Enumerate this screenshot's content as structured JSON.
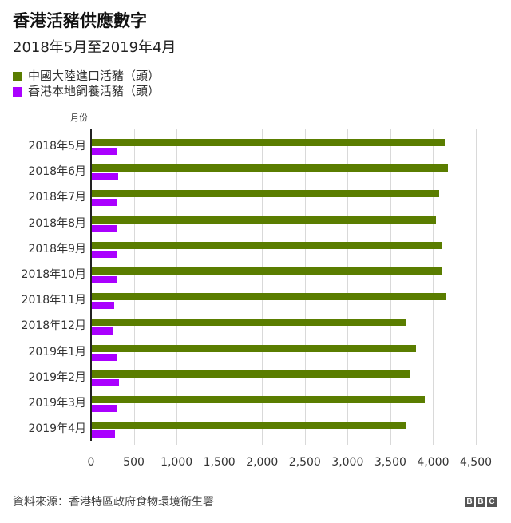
{
  "header": {
    "title": "香港活豬供應數字",
    "subtitle": "2018年5月至2019年4月"
  },
  "legend": [
    {
      "label": "中國大陸進口活豬（頭）",
      "color": "#5a7d00"
    },
    {
      "label": "香港本地飼養活豬（頭）",
      "color": "#aa00ff"
    }
  ],
  "axis": {
    "ylabel": "月份",
    "ticks": [
      "0",
      "500",
      "1,000",
      "1,500",
      "2,000",
      "2,500",
      "3,000",
      "3,500",
      "4,000",
      "4,500"
    ]
  },
  "chart_data": {
    "type": "bar",
    "orientation": "horizontal",
    "title": "香港活豬供應數字",
    "subtitle": "2018年5月至2019年4月",
    "xlabel": "",
    "ylabel": "月份",
    "xlim": [
      0,
      4500
    ],
    "grid": true,
    "legend_position": "top-left",
    "categories": [
      "2018年5月",
      "2018年6月",
      "2018年7月",
      "2018年8月",
      "2018年9月",
      "2018年10月",
      "2018年11月",
      "2018年12月",
      "2019年1月",
      "2019年2月",
      "2019年3月",
      "2019年4月"
    ],
    "series": [
      {
        "name": "中國大陸進口活豬（頭）",
        "color": "#5a7d00",
        "values": [
          4130,
          4165,
          4060,
          4025,
          4095,
          4090,
          4135,
          3675,
          3790,
          3715,
          3895,
          3670
        ]
      },
      {
        "name": "香港本地飼養活豬（頭）",
        "color": "#aa00ff",
        "values": [
          295,
          310,
          300,
          295,
          295,
          285,
          265,
          245,
          285,
          320,
          295,
          275
        ]
      }
    ]
  },
  "footer": {
    "source": "資料來源：香港特區政府食物環境衛生署",
    "logo": [
      "B",
      "B",
      "C"
    ]
  }
}
